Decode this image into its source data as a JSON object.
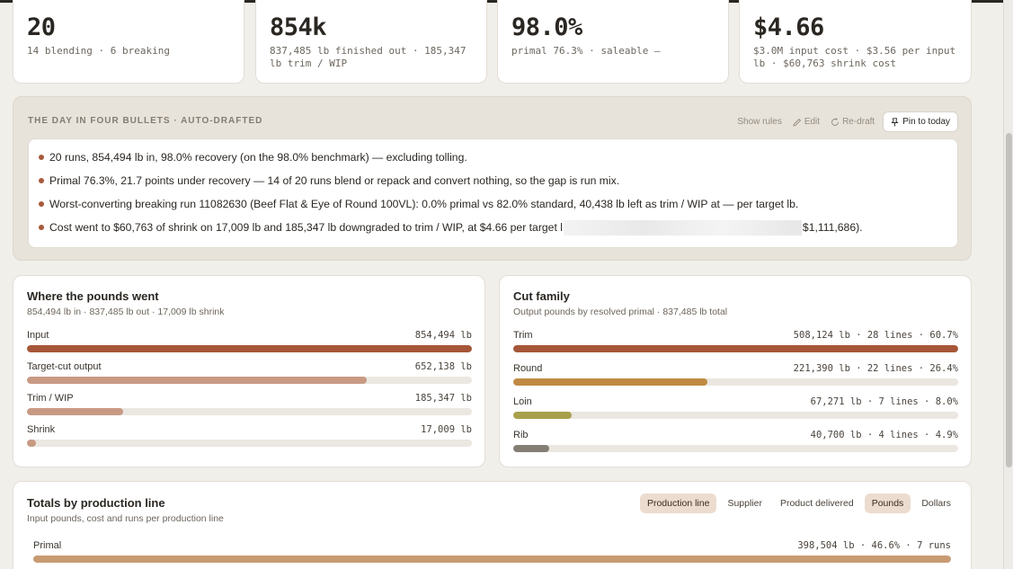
{
  "kpis": [
    {
      "value": "20",
      "sub": "14 blending · 6 breaking"
    },
    {
      "value": "854k",
      "sub": "837,485 lb finished out · 185,347 lb trim / WIP"
    },
    {
      "value": "98.0%",
      "sub": "primal 76.3% · saleable —"
    },
    {
      "value": "$4.66",
      "sub": "$3.0M input cost · $3.56 per input lb · $60,763 shrink cost"
    }
  ],
  "day": {
    "title": "THE DAY IN FOUR BULLETS · AUTO-DRAFTED",
    "show_rules": "Show rules",
    "edit": "Edit",
    "redraft": "Re-draft",
    "pin": "Pin to today",
    "bullets": [
      "20 runs, 854,494 lb in, 98.0% recovery (on the 98.0% benchmark) — excluding tolling.",
      "Primal 76.3%, 21.7 points under recovery — 14 of 20 runs blend or repack and convert nothing, so the gap is run mix.",
      "Worst-converting breaking run 11082630 (Beef Flat & Eye of Round 100VL): 0.0% primal vs 82.0% standard, 40,438 lb left as trim / WIP at — per target lb."
    ],
    "bullet4_a": "Cost went to $60,763 of shrink on 17,009 lb and 185,347 lb downgraded to trim / WIP, at $4.66 per target l",
    "bullet4_b": "$1,111,686)."
  },
  "pounds": {
    "title": "Where the pounds went",
    "subtitle": "854,494 lb in · 837,485 lb out · 17,009 lb shrink",
    "rows": [
      {
        "label": "Input",
        "value": "854,494 lb",
        "fraction": 1.0,
        "color": "#a65638"
      },
      {
        "label": "Target-cut output",
        "value": "652,138 lb",
        "fraction": 0.763,
        "color": "#c89a84"
      },
      {
        "label": "Trim / WIP",
        "value": "185,347 lb",
        "fraction": 0.217,
        "color": "#c89a84"
      },
      {
        "label": "Shrink",
        "value": "17,009 lb",
        "fraction": 0.02,
        "color": "#c89a84"
      }
    ]
  },
  "cut": {
    "title": "Cut family",
    "subtitle": "Output pounds by resolved primal · 837,485 lb total",
    "rows": [
      {
        "label": "Trim",
        "value": "508,124 lb · 28 lines · 60.7%",
        "fraction": 1.0,
        "color": "#a65638"
      },
      {
        "label": "Round",
        "value": "221,390 lb · 22 lines · 26.4%",
        "fraction": 0.436,
        "color": "#c08a42"
      },
      {
        "label": "Loin",
        "value": "67,271 lb · 7 lines · 8.0%",
        "fraction": 0.132,
        "color": "#a8a04a"
      },
      {
        "label": "Rib",
        "value": "40,700 lb · 4 lines · 4.9%",
        "fraction": 0.08,
        "color": "#857e75"
      }
    ]
  },
  "totals": {
    "title": "Totals by production line",
    "subtitle": "Input pounds, cost and runs per production line",
    "chips": [
      "Production line",
      "Supplier",
      "Product delivered",
      "Pounds",
      "Dollars"
    ],
    "rows": [
      {
        "label": "Primal",
        "value": "398,504 lb · 46.6% · 7 runs",
        "fraction": 1.0,
        "color": "#c89b73"
      }
    ]
  }
}
